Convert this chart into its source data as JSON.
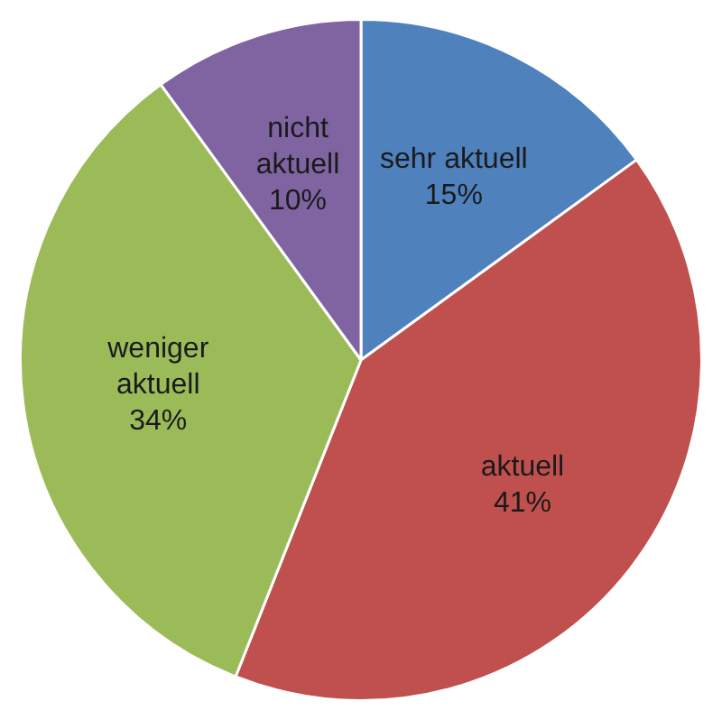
{
  "chart_data": {
    "type": "pie",
    "categories": [
      "sehr aktuell",
      "aktuell",
      "weniger aktuell",
      "nicht aktuell"
    ],
    "values": [
      15,
      41,
      34,
      10
    ],
    "colors": [
      "#4f81bd",
      "#c0504d",
      "#9bbb59",
      "#8064a2"
    ],
    "value_labels": [
      "15%",
      "41%",
      "34%",
      "10%"
    ],
    "legend": false
  }
}
